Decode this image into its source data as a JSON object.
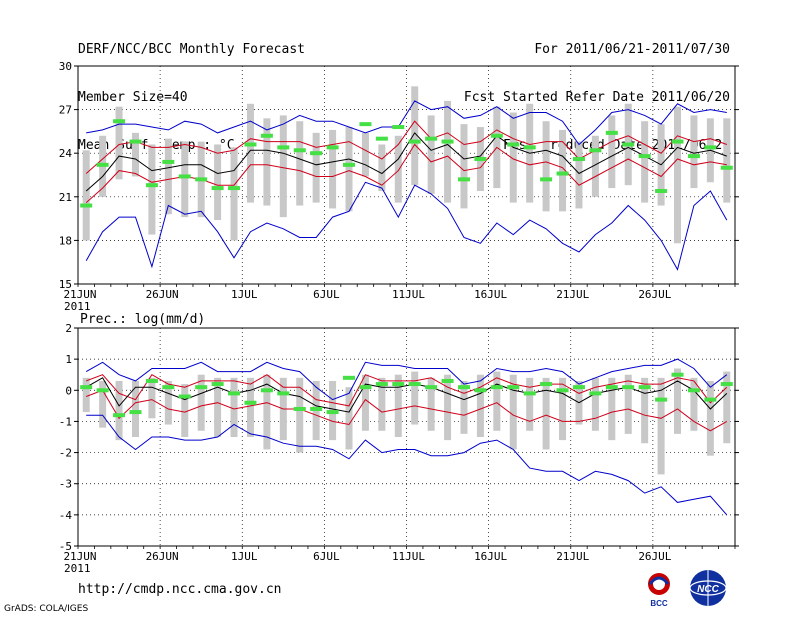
{
  "header": {
    "left": [
      "DERF/NCC/BCC Monthly Forecast",
      "Member Size=40",
      "Mean Surf. Temp.: °C"
    ],
    "right": [
      "For 2011/06/21-2011/07/30",
      "Fcst Started Refer Date 2011/06/20",
      "Fcst Produced Date 2011/06/21"
    ]
  },
  "footer": {
    "url": "http://cmdp.ncc.cma.gov.cn",
    "credit": "GrADS: COLA/IGES"
  },
  "logos": {
    "left": "BCC",
    "right": "NCC"
  },
  "colors": {
    "median": "#000000",
    "quartile": "#d0001a",
    "extreme": "#0000cc",
    "obs": "#44e044",
    "box": "#c8c8c8"
  },
  "chart_data": [
    {
      "type": "line",
      "title": "Mean Surf. Temp.: °C",
      "x_days": 40,
      "x_ticks": [
        "21JUN",
        "26JUN",
        "1JUL",
        "6JUL",
        "11JUL",
        "16JUL",
        "21JUL",
        "26JUL"
      ],
      "x_year_label": "2011",
      "ylim": [
        15,
        30
      ],
      "yticks": [
        15,
        18,
        21,
        24,
        27,
        30
      ],
      "series": [
        {
          "name": "max",
          "values": [
            25.4,
            25.6,
            26,
            26,
            25.8,
            25.6,
            26.2,
            26,
            25.4,
            25.8,
            26.2,
            25.6,
            26,
            26.6,
            26.2,
            26.2,
            25.8,
            25.4,
            25.8,
            25.8,
            27.6,
            27,
            27.2,
            26.4,
            26.6,
            27.2,
            26.4,
            26.8,
            26.8,
            26.2,
            24.6,
            25.6,
            26.8,
            27,
            26.6,
            26,
            27.4,
            26.8,
            27,
            26.8
          ]
        },
        {
          "name": "q3",
          "values": [
            22.6,
            23.6,
            24.6,
            24.8,
            24.4,
            24.4,
            24.6,
            24.4,
            24,
            24.2,
            25,
            24.8,
            24.8,
            24.8,
            24.4,
            24.6,
            24.8,
            24.2,
            23.6,
            24.6,
            26.2,
            25,
            25.4,
            24.6,
            24.8,
            25.6,
            25,
            24.6,
            24.8,
            24.8,
            23.6,
            24.2,
            24.8,
            25.2,
            24.6,
            24,
            25.2,
            24.8,
            25,
            24.6
          ]
        },
        {
          "name": "median",
          "values": [
            21.4,
            22.4,
            23.8,
            23.6,
            22.8,
            23,
            23.2,
            23.2,
            22.6,
            22.8,
            24.2,
            24.2,
            24,
            23.6,
            23.2,
            23.4,
            23.6,
            23.2,
            22.6,
            23.6,
            25.4,
            24.2,
            24.6,
            23.6,
            23.8,
            25.2,
            24.4,
            24,
            24.2,
            23.8,
            22.6,
            23.2,
            23.8,
            24.4,
            23.8,
            23.2,
            24.4,
            24,
            24.2,
            23.8
          ]
        },
        {
          "name": "q1",
          "values": [
            20.6,
            21.6,
            22.8,
            22.6,
            22,
            22.2,
            22.4,
            22.2,
            21.8,
            21.8,
            23.2,
            23.2,
            23,
            22.8,
            22.4,
            22.4,
            22.8,
            22.4,
            21.8,
            22.8,
            24.6,
            23.4,
            23.8,
            22.8,
            23,
            24.4,
            23.6,
            23.2,
            23.4,
            23,
            21.8,
            22.4,
            23,
            23.6,
            23,
            22.4,
            23.6,
            23.2,
            23.4,
            23.2
          ]
        },
        {
          "name": "min",
          "values": [
            16.6,
            18.6,
            19.6,
            19.6,
            16.2,
            20.4,
            19.8,
            20,
            18.6,
            16.8,
            18.6,
            19.2,
            18.8,
            18.2,
            18.2,
            19.6,
            20,
            22,
            21.6,
            19.6,
            21.8,
            21.2,
            20.2,
            18.2,
            17.8,
            19.2,
            18.4,
            19.4,
            18.8,
            17.8,
            17.2,
            18.4,
            19.2,
            20.4,
            19.4,
            18,
            16,
            20.4,
            21.4,
            19.4
          ]
        },
        {
          "name": "observed",
          "values": [
            20.4,
            23.2,
            26.2,
            24.8,
            21.8,
            23.4,
            22.4,
            22.2,
            21.6,
            21.6,
            24.6,
            25.2,
            24.4,
            24.2,
            24,
            24.4,
            23.2,
            26,
            25,
            25.8,
            24.8,
            25,
            24.8,
            22.2,
            23.6,
            25.2,
            24.6,
            24.4,
            22.2,
            22.6,
            23.6,
            24.2,
            25.4,
            24.6,
            23.8,
            21.4,
            24.8,
            23.8,
            24.4,
            23
          ]
        },
        {
          "name": "ensemble-box",
          "lows": [
            18,
            21,
            22.2,
            22.4,
            18.4,
            19.8,
            19.6,
            19.6,
            19.4,
            18,
            20.6,
            20.4,
            19.6,
            20.4,
            20.6,
            20.2,
            20,
            22.4,
            21.4,
            20.6,
            21.8,
            21.2,
            20.6,
            20.2,
            21.4,
            21.6,
            20.6,
            20.6,
            20,
            20,
            20.2,
            21,
            21.6,
            21.8,
            20.6,
            20.4,
            17.8,
            21.6,
            22,
            20.6
          ],
          "highs": [
            24.2,
            25.2,
            27.2,
            25.4,
            24.6,
            25,
            24.8,
            24.8,
            24.6,
            24.4,
            27.4,
            26.4,
            26.6,
            26.2,
            25.4,
            25.6,
            25.8,
            25.4,
            24.6,
            25.2,
            28.6,
            26.6,
            27.6,
            26,
            25.8,
            27.2,
            26.8,
            27.4,
            26.2,
            25.6,
            24.8,
            25.2,
            26.6,
            27.4,
            26.2,
            26,
            27.2,
            26.6,
            26.4,
            26.4
          ]
        }
      ]
    },
    {
      "type": "line",
      "title": "Prec.: log(mm/d)",
      "x_days": 40,
      "x_ticks": [
        "21JUN",
        "26JUN",
        "1JUL",
        "6JUL",
        "11JUL",
        "16JUL",
        "21JUL",
        "26JUL"
      ],
      "x_year_label": "2011",
      "ylim": [
        -5,
        2
      ],
      "yticks": [
        -5,
        -4,
        -3,
        -2,
        -1,
        0,
        1,
        2
      ],
      "series": [
        {
          "name": "max",
          "values": [
            0.6,
            0.9,
            0.5,
            0.3,
            0.7,
            0.7,
            0.7,
            0.9,
            0.6,
            0.6,
            0.6,
            0.9,
            0.7,
            0.6,
            0.1,
            -0.3,
            -0.1,
            0.9,
            0.8,
            0.8,
            0.7,
            0.7,
            0.7,
            0.2,
            0.3,
            0.7,
            0.6,
            0.6,
            0.7,
            0.6,
            0.2,
            0.4,
            0.6,
            0.7,
            0.8,
            0.8,
            1,
            0.7,
            0.1,
            0.5
          ]
        },
        {
          "name": "q3",
          "values": [
            0.3,
            0.5,
            -0.1,
            -0.3,
            0.5,
            0.2,
            0.1,
            0.3,
            0.3,
            0.3,
            0.2,
            0.5,
            0.1,
            0.1,
            -0.3,
            -0.4,
            -0.5,
            0.5,
            0.3,
            0.3,
            0.3,
            0.4,
            0.1,
            -0.1,
            0.1,
            0.4,
            0.2,
            0.1,
            0.2,
            0.2,
            -0.1,
            0.1,
            0.2,
            0.3,
            0.2,
            0.2,
            0.4,
            0.3,
            -0.4,
            0.1
          ]
        },
        {
          "name": "median",
          "values": [
            0.1,
            0.4,
            -0.5,
            0.1,
            0.1,
            -0.1,
            -0.3,
            -0.1,
            0.1,
            -0.1,
            0,
            0.2,
            -0.1,
            -0.2,
            -0.5,
            -0.6,
            -0.7,
            0.2,
            0.1,
            0.1,
            0.2,
            0.1,
            -0.1,
            -0.3,
            -0.1,
            0.2,
            0,
            -0.1,
            0,
            -0.1,
            -0.4,
            -0.1,
            0,
            0.1,
            -0.1,
            0,
            0.3,
            0,
            -0.6,
            -0.1
          ]
        },
        {
          "name": "q1",
          "values": [
            -0.2,
            0,
            -0.9,
            -0.4,
            -0.3,
            -0.6,
            -0.7,
            -0.5,
            -0.4,
            -0.6,
            -0.5,
            -0.4,
            -0.6,
            -0.6,
            -0.8,
            -1,
            -1.1,
            -0.3,
            -0.7,
            -0.6,
            -0.5,
            -0.6,
            -0.7,
            -0.8,
            -0.6,
            -0.4,
            -0.8,
            -1,
            -0.8,
            -1,
            -1,
            -0.9,
            -0.7,
            -0.6,
            -0.8,
            -0.9,
            -0.6,
            -1,
            -1.3,
            -1
          ]
        },
        {
          "name": "min",
          "values": [
            -0.8,
            -0.8,
            -1.5,
            -1.9,
            -1.5,
            -1.5,
            -1.6,
            -1.6,
            -1.5,
            -1.1,
            -1.4,
            -1.5,
            -1.7,
            -1.8,
            -1.8,
            -1.9,
            -2.2,
            -1.6,
            -2,
            -1.9,
            -1.9,
            -2.1,
            -2.1,
            -2,
            -1.7,
            -1.6,
            -1.9,
            -2.5,
            -2.6,
            -2.6,
            -2.9,
            -2.6,
            -2.7,
            -2.9,
            -3.3,
            -3.1,
            -3.6,
            -3.5,
            -3.4,
            -4
          ]
        },
        {
          "name": "observed",
          "values": [
            0.1,
            0,
            -0.8,
            -0.7,
            0.3,
            0.1,
            -0.2,
            0.1,
            0.2,
            -0.1,
            -0.4,
            0,
            -0.1,
            -0.6,
            -0.6,
            -0.7,
            0.4,
            0.1,
            0.2,
            0.2,
            0.2,
            0.1,
            0.3,
            0.1,
            0,
            0.1,
            0.1,
            -0.1,
            0.2,
            0,
            0.1,
            -0.1,
            0.1,
            0.1,
            0.1,
            -0.3,
            0.5,
            0,
            -0.3,
            0.2
          ]
        },
        {
          "name": "ensemble-box",
          "lows": [
            -0.7,
            -1.2,
            -1.6,
            -1.5,
            -0.9,
            -1.1,
            -1.5,
            -1.3,
            -1.5,
            -1.5,
            -1.5,
            -1.9,
            -1.6,
            -2,
            -1.6,
            -1.6,
            -1.9,
            -1.3,
            -1.3,
            -1.5,
            -1.1,
            -1.3,
            -1.6,
            -1.4,
            -1.5,
            -1.3,
            -1.9,
            -1.3,
            -1.9,
            -1.6,
            -1.1,
            -1.3,
            -1.6,
            -1.4,
            -1.7,
            -2.7,
            -1.4,
            -1.3,
            -2.1,
            -1.7
          ],
          "highs": [
            0.4,
            0.3,
            0.3,
            0.3,
            0.4,
            0.3,
            0.2,
            0.5,
            0.4,
            0.4,
            0.4,
            0.5,
            0.4,
            0.4,
            0.3,
            0.3,
            0.1,
            0.5,
            0.4,
            0.5,
            0.6,
            0.4,
            0.5,
            0.3,
            0.5,
            0.6,
            0.5,
            0.4,
            0.4,
            0.4,
            0.3,
            0.4,
            0.4,
            0.5,
            0.4,
            0.4,
            0.7,
            0.4,
            0.3,
            0.6
          ]
        }
      ]
    }
  ]
}
